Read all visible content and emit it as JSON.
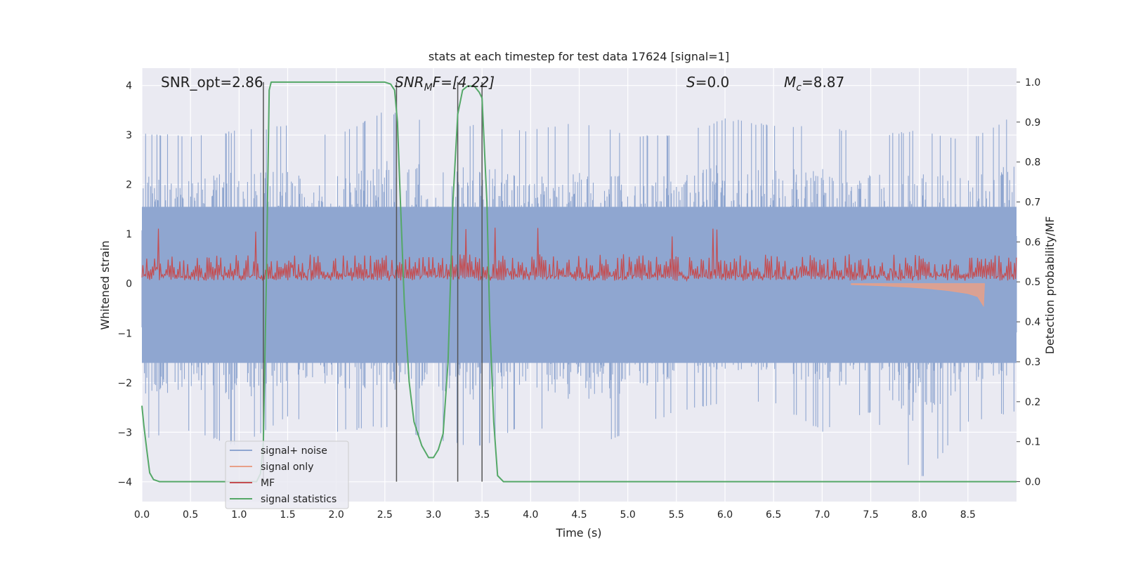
{
  "chart_data": {
    "type": "line",
    "title": "stats at each timestep for test data 17624 [signal=1]",
    "xlabel": "Time (s)",
    "ylabel_left": "Whitened strain",
    "ylabel_right": "Detection probability/MF",
    "xlim": [
      0.0,
      9.0
    ],
    "ylim_left": [
      -4.4,
      4.35
    ],
    "ylim_right": [
      -0.05,
      1.035
    ],
    "grid": true,
    "legend_position": "lower-left",
    "x_ticks": [
      0.0,
      0.5,
      1.0,
      1.5,
      2.0,
      2.5,
      3.0,
      3.5,
      4.0,
      4.5,
      5.0,
      5.5,
      6.0,
      6.5,
      7.0,
      7.5,
      8.0,
      8.5
    ],
    "x_tick_labels": [
      "0.0",
      "0.5",
      "1.0",
      "1.5",
      "2.0",
      "2.5",
      "3.0",
      "3.5",
      "4.0",
      "4.5",
      "5.0",
      "5.5",
      "6.0",
      "6.5",
      "7.0",
      "7.5",
      "8.0",
      "8.5"
    ],
    "y_ticks_left": [
      4,
      3,
      2,
      1,
      0,
      -1,
      -2,
      -3,
      -4
    ],
    "y_tick_labels_left": [
      "4",
      "3",
      "2",
      "1",
      "0",
      "−1",
      "−2",
      "−3",
      "−4"
    ],
    "y_ticks_right": [
      1.0,
      0.9,
      0.8,
      0.7,
      0.6,
      0.5,
      0.4,
      0.3,
      0.2,
      0.1,
      0.0
    ],
    "y_tick_labels_right": [
      "1.0",
      "0.9",
      "0.8",
      "0.7",
      "0.6",
      "0.5",
      "0.4",
      "0.3",
      "0.2",
      "0.1",
      "0.0"
    ],
    "annotations": {
      "snr_opt": "SNR_opt=2.86",
      "snr_mf_main": "SNR",
      "snr_mf_sub": "M",
      "snr_mf_rest": "F=[4.22]",
      "s_main": "S",
      "s_rest": "=0.0",
      "mc_main": "M",
      "mc_sub": "c",
      "mc_rest": "=8.87"
    },
    "vertical_lines_x": [
      1.25,
      2.62,
      3.25,
      3.5
    ],
    "series": [
      {
        "name": "signal+ noise",
        "color": "#8fa6d0",
        "axis": "left",
        "envelope_x": [
          0.0,
          0.5,
          1.0,
          1.5,
          2.0,
          2.5,
          3.0,
          3.5,
          4.0,
          4.5,
          5.0,
          5.5,
          6.0,
          6.5,
          7.0,
          7.5,
          8.0,
          8.5,
          9.0
        ],
        "envelope_upper": [
          3.05,
          3.0,
          3.1,
          3.2,
          3.0,
          3.5,
          3.3,
          3.2,
          3.1,
          3.3,
          3.0,
          3.0,
          3.35,
          3.2,
          3.2,
          3.0,
          3.1,
          2.9,
          3.45
        ],
        "envelope_lower": [
          -3.15,
          -3.0,
          -3.3,
          -2.7,
          -3.0,
          -2.9,
          -3.2,
          -3.3,
          -2.8,
          -3.5,
          -3.0,
          -2.6,
          -2.4,
          -2.4,
          -3.0,
          -2.6,
          -4.0,
          -2.8,
          -2.6
        ]
      },
      {
        "name": "signal only",
        "color": "#e8a088",
        "axis": "left",
        "x": [
          7.3,
          7.6,
          7.9,
          8.1,
          8.3,
          8.5,
          8.6,
          8.66,
          8.67
        ],
        "y": [
          -0.02,
          -0.04,
          -0.07,
          -0.1,
          -0.14,
          -0.2,
          -0.26,
          -0.45,
          0.0
        ]
      },
      {
        "name": "MF",
        "color": "#c44e52",
        "axis": "right",
        "baseline": 0.5,
        "typical_peak": 0.57,
        "max_peak": 0.64
      },
      {
        "name": "signal statistics",
        "color": "#55a868",
        "axis": "right",
        "x": [
          0.0,
          0.02,
          0.05,
          0.08,
          0.12,
          0.18,
          0.3,
          1.0,
          1.18,
          1.22,
          1.25,
          1.28,
          1.31,
          1.33,
          1.4,
          2.5,
          2.56,
          2.6,
          2.63,
          2.66,
          2.7,
          2.75,
          2.8,
          2.88,
          2.95,
          3.0,
          3.05,
          3.1,
          3.15,
          3.2,
          3.25,
          3.3,
          3.35,
          3.42,
          3.47,
          3.5,
          3.55,
          3.58,
          3.62,
          3.66,
          3.72,
          4.0,
          9.0
        ],
        "y": [
          0.19,
          0.14,
          0.08,
          0.022,
          0.005,
          0.0,
          0.0,
          0.0,
          0.0,
          0.02,
          0.1,
          0.5,
          0.98,
          1.0,
          1.0,
          1.0,
          0.995,
          0.98,
          0.9,
          0.7,
          0.45,
          0.25,
          0.15,
          0.09,
          0.06,
          0.06,
          0.08,
          0.12,
          0.3,
          0.7,
          0.92,
          0.98,
          0.99,
          0.99,
          0.975,
          0.96,
          0.7,
          0.4,
          0.15,
          0.015,
          0.0,
          0.0,
          0.0
        ]
      }
    ]
  }
}
